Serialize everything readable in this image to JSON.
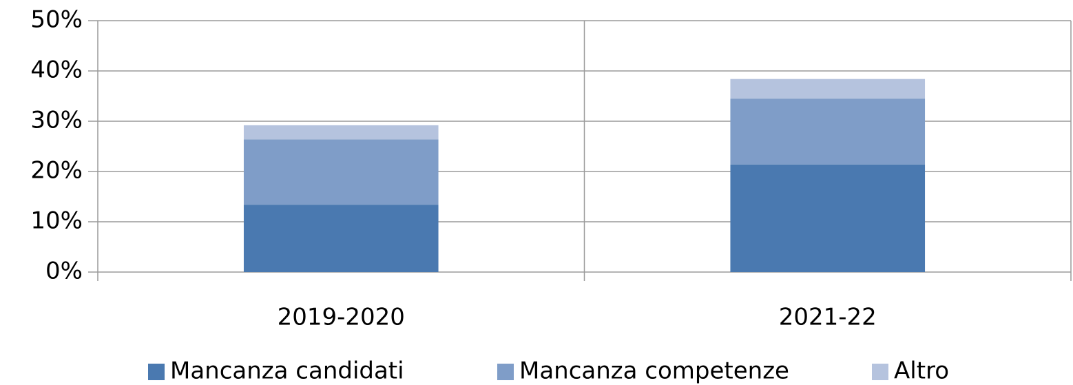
{
  "chart_data": {
    "type": "stacked_bar",
    "categories": [
      "2019-2020",
      "2021-22"
    ],
    "series": [
      {
        "name": "Mancanza candidati",
        "color": "#4a79b0",
        "values": [
          13.4,
          21.4
        ]
      },
      {
        "name": "Mancanza competenze",
        "color": "#7f9dc8",
        "values": [
          13.0,
          13.1
        ]
      },
      {
        "name": "Altro",
        "color": "#b5c3de",
        "values": [
          2.8,
          3.9
        ]
      }
    ],
    "ylim": [
      0,
      50
    ],
    "yticks": [
      {
        "value": 0,
        "label": "0%"
      },
      {
        "value": 10,
        "label": "10%"
      },
      {
        "value": 20,
        "label": "20%"
      },
      {
        "value": 30,
        "label": "30%"
      },
      {
        "value": 40,
        "label": "40%"
      },
      {
        "value": 50,
        "label": "50%"
      }
    ],
    "grid": true,
    "legend": "bottom"
  }
}
